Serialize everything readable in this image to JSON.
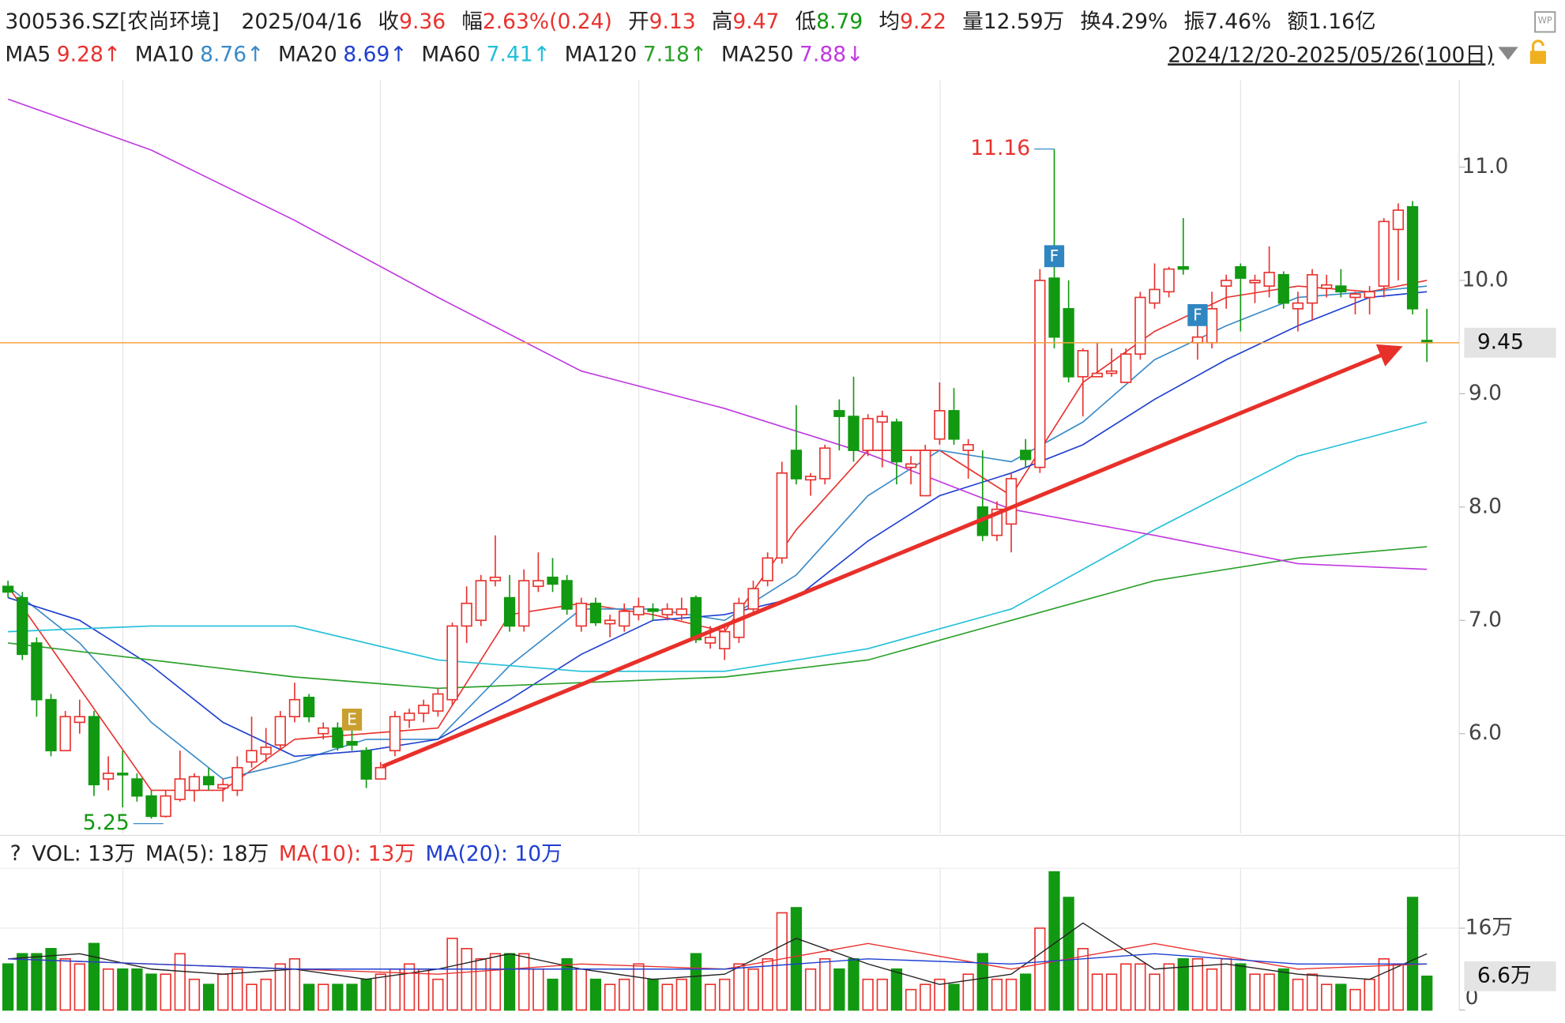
{
  "chart_data": {
    "type": "candlestick",
    "header": {
      "code": "300536.SZ[农尚环境]",
      "date": "2025/04/16",
      "items": [
        {
          "label": "收",
          "value": "9.36",
          "color": "#e8322e"
        },
        {
          "label": "幅",
          "value": "2.63%(0.24)",
          "color": "#e8322e"
        },
        {
          "label": "开",
          "value": "9.13",
          "color": "#e8322e"
        },
        {
          "label": "高",
          "value": "9.47",
          "color": "#e8322e"
        },
        {
          "label": "低",
          "value": "8.79",
          "color": "#119911"
        },
        {
          "label": "均",
          "value": "9.22",
          "color": "#e8322e"
        },
        {
          "label": "量",
          "value": "12.59万",
          "color": "#222222"
        },
        {
          "label": "换",
          "value": "4.29%",
          "color": "#222222"
        },
        {
          "label": "振",
          "value": "7.46%",
          "color": "#222222"
        },
        {
          "label": "额",
          "value": "1.16亿",
          "color": "#222222"
        }
      ]
    },
    "range": "2024/12/20-2025/05/26(100日)",
    "up_color": "#e8322e",
    "down_color": "#119911",
    "ylim": [
      5.12,
      11.77
    ],
    "yticks": [
      {
        "value": 6,
        "label": "6.0"
      },
      {
        "value": 7,
        "label": "7.0"
      },
      {
        "value": 8,
        "label": "8.0"
      },
      {
        "value": 9,
        "label": "9.0"
      },
      {
        "value": 10,
        "label": "10.0"
      },
      {
        "value": 11,
        "label": "11.0"
      }
    ],
    "price_line": 9.45,
    "ohlc": [
      [
        7.3,
        7.35,
        7.2,
        7.25
      ],
      [
        7.2,
        7.25,
        6.65,
        6.7
      ],
      [
        6.8,
        6.85,
        6.15,
        6.3
      ],
      [
        6.3,
        6.35,
        5.8,
        5.85
      ],
      [
        5.85,
        6.2,
        5.85,
        6.15
      ],
      [
        6.1,
        6.3,
        6.0,
        6.15
      ],
      [
        6.15,
        6.2,
        5.45,
        5.55
      ],
      [
        5.6,
        5.8,
        5.5,
        5.65
      ],
      [
        5.65,
        5.85,
        5.35,
        5.64
      ],
      [
        5.6,
        5.65,
        5.4,
        5.45
      ],
      [
        5.45,
        5.5,
        5.25,
        5.27
      ],
      [
        5.27,
        5.5,
        5.26,
        5.45
      ],
      [
        5.42,
        5.85,
        5.4,
        5.6
      ],
      [
        5.5,
        5.65,
        5.4,
        5.62
      ],
      [
        5.62,
        5.7,
        5.5,
        5.55
      ],
      [
        5.52,
        5.6,
        5.4,
        5.55
      ],
      [
        5.5,
        5.8,
        5.45,
        5.7
      ],
      [
        5.75,
        6.15,
        5.7,
        5.85
      ],
      [
        5.82,
        6.05,
        5.75,
        5.88
      ],
      [
        5.9,
        6.2,
        5.85,
        6.15
      ],
      [
        6.15,
        6.45,
        6.1,
        6.3
      ],
      [
        6.32,
        6.35,
        6.1,
        6.15
      ],
      [
        6.0,
        6.1,
        5.95,
        6.05
      ],
      [
        6.05,
        6.1,
        5.85,
        5.88
      ],
      [
        5.93,
        6.1,
        5.85,
        5.9
      ],
      [
        5.85,
        5.88,
        5.52,
        5.6
      ],
      [
        5.6,
        5.75,
        5.6,
        5.7
      ],
      [
        5.85,
        6.2,
        5.8,
        6.15
      ],
      [
        6.12,
        6.22,
        6.05,
        6.18
      ],
      [
        6.18,
        6.3,
        6.1,
        6.25
      ],
      [
        6.2,
        6.4,
        6.15,
        6.35
      ],
      [
        6.3,
        6.98,
        6.25,
        6.95
      ],
      [
        6.95,
        7.3,
        6.8,
        7.15
      ],
      [
        7.0,
        7.4,
        6.95,
        7.35
      ],
      [
        7.35,
        7.75,
        7.3,
        7.38
      ],
      [
        7.2,
        7.4,
        6.9,
        6.95
      ],
      [
        6.95,
        7.45,
        6.9,
        7.35
      ],
      [
        7.3,
        7.6,
        7.25,
        7.35
      ],
      [
        7.38,
        7.55,
        7.25,
        7.32
      ],
      [
        7.35,
        7.4,
        7.05,
        7.1
      ],
      [
        6.95,
        7.2,
        6.9,
        7.15
      ],
      [
        7.15,
        7.2,
        6.95,
        6.98
      ],
      [
        6.97,
        7.05,
        6.85,
        7.0
      ],
      [
        6.95,
        7.15,
        6.9,
        7.08
      ],
      [
        7.05,
        7.2,
        7.0,
        7.12
      ],
      [
        7.1,
        7.15,
        7.0,
        7.08
      ],
      [
        7.05,
        7.15,
        7.0,
        7.1
      ],
      [
        7.05,
        7.2,
        7.0,
        7.1
      ],
      [
        7.2,
        7.22,
        6.8,
        6.83
      ],
      [
        6.8,
        6.95,
        6.75,
        6.85
      ],
      [
        6.75,
        6.95,
        6.65,
        6.9
      ],
      [
        6.85,
        7.2,
        6.8,
        7.15
      ],
      [
        7.1,
        7.35,
        7.05,
        7.28
      ],
      [
        7.35,
        7.6,
        7.3,
        7.55
      ],
      [
        7.55,
        8.4,
        7.5,
        8.3
      ],
      [
        8.5,
        8.9,
        8.2,
        8.25
      ],
      [
        8.24,
        8.3,
        8.1,
        8.27
      ],
      [
        8.25,
        8.55,
        8.2,
        8.52
      ],
      [
        8.85,
        8.95,
        8.5,
        8.8
      ],
      [
        8.8,
        9.15,
        8.4,
        8.5
      ],
      [
        8.5,
        8.82,
        8.45,
        8.78
      ],
      [
        8.75,
        8.85,
        8.35,
        8.8
      ],
      [
        8.75,
        8.78,
        8.2,
        8.4
      ],
      [
        8.35,
        8.45,
        8.2,
        8.38
      ],
      [
        8.1,
        8.55,
        8.1,
        8.5
      ],
      [
        8.6,
        9.1,
        8.55,
        8.85
      ],
      [
        8.85,
        9.05,
        8.55,
        8.6
      ],
      [
        8.5,
        8.6,
        8.25,
        8.55
      ],
      [
        8.0,
        8.5,
        7.7,
        7.75
      ],
      [
        7.75,
        8.05,
        7.7,
        7.98
      ],
      [
        7.85,
        8.3,
        7.6,
        8.25
      ],
      [
        8.5,
        8.6,
        8.35,
        8.42
      ],
      [
        8.35,
        10.1,
        8.3,
        10.0
      ],
      [
        10.02,
        11.16,
        9.4,
        9.5
      ],
      [
        9.75,
        10.0,
        9.1,
        9.15
      ],
      [
        9.15,
        9.4,
        8.8,
        9.38
      ],
      [
        9.15,
        9.45,
        9.15,
        9.18
      ],
      [
        9.18,
        9.4,
        9.15,
        9.2
      ],
      [
        9.1,
        9.4,
        9.1,
        9.35
      ],
      [
        9.35,
        9.9,
        9.3,
        9.85
      ],
      [
        9.8,
        10.15,
        9.75,
        9.92
      ],
      [
        9.9,
        10.12,
        9.85,
        10.1
      ],
      [
        10.12,
        10.55,
        10.05,
        10.1
      ],
      [
        9.45,
        9.75,
        9.3,
        9.5
      ],
      [
        9.45,
        9.9,
        9.4,
        9.75
      ],
      [
        9.95,
        10.05,
        9.75,
        10.0
      ],
      [
        10.12,
        10.15,
        9.55,
        10.02
      ],
      [
        9.98,
        10.05,
        9.8,
        10.0
      ],
      [
        9.95,
        10.3,
        9.85,
        10.07
      ],
      [
        10.05,
        10.08,
        9.75,
        9.8
      ],
      [
        9.75,
        9.9,
        9.55,
        9.8
      ],
      [
        9.8,
        10.1,
        9.65,
        10.05
      ],
      [
        9.93,
        10.05,
        9.85,
        9.96
      ],
      [
        9.95,
        10.1,
        9.85,
        9.9
      ],
      [
        9.85,
        9.9,
        9.7,
        9.88
      ],
      [
        9.85,
        9.95,
        9.7,
        9.9
      ],
      [
        9.95,
        10.55,
        9.85,
        10.52
      ],
      [
        10.45,
        10.68,
        10.0,
        10.62
      ],
      [
        10.65,
        10.7,
        9.7,
        9.75
      ],
      [
        9.47,
        9.75,
        9.28,
        9.45
      ]
    ],
    "ma_lines": [
      {
        "name": "MA5",
        "legend_value": "9.28↑",
        "color": "#e8322e",
        "x": [
          0,
          5,
          10,
          15,
          20,
          25,
          30,
          35,
          40,
          45,
          50,
          55,
          60,
          65,
          70,
          75,
          80,
          85,
          90,
          95,
          99
        ],
        "values": [
          7.3,
          6.4,
          5.5,
          5.5,
          5.95,
          6.0,
          6.05,
          7.05,
          7.15,
          7.05,
          6.9,
          7.8,
          8.5,
          8.5,
          8.1,
          9.1,
          9.55,
          9.85,
          9.95,
          9.9,
          10.0
        ]
      },
      {
        "name": "MA10",
        "legend_value": "8.76↑",
        "color": "#3a8ac8",
        "x": [
          0,
          5,
          10,
          15,
          20,
          25,
          30,
          35,
          40,
          45,
          50,
          55,
          60,
          65,
          70,
          75,
          80,
          85,
          90,
          95,
          99
        ],
        "values": [
          7.3,
          6.8,
          6.1,
          5.6,
          5.75,
          5.95,
          5.95,
          6.6,
          7.1,
          7.1,
          7.0,
          7.4,
          8.1,
          8.5,
          8.4,
          8.75,
          9.3,
          9.6,
          9.85,
          9.9,
          9.95
        ]
      },
      {
        "name": "MA20",
        "legend_value": "8.69↑",
        "color": "#1e3fd0",
        "x": [
          0,
          5,
          10,
          15,
          20,
          25,
          30,
          35,
          40,
          45,
          50,
          55,
          60,
          65,
          70,
          75,
          80,
          85,
          90,
          95,
          99
        ],
        "values": [
          7.2,
          7.0,
          6.6,
          6.1,
          5.8,
          5.85,
          5.95,
          6.3,
          6.7,
          7.0,
          7.05,
          7.2,
          7.7,
          8.1,
          8.3,
          8.55,
          8.95,
          9.3,
          9.6,
          9.85,
          9.9
        ]
      },
      {
        "name": "MA60",
        "legend_value": "7.41↑",
        "color": "#22c0d8",
        "x": [
          0,
          10,
          20,
          30,
          40,
          50,
          60,
          70,
          80,
          90,
          99
        ],
        "values": [
          6.9,
          6.95,
          6.95,
          6.65,
          6.55,
          6.55,
          6.75,
          7.1,
          7.8,
          8.45,
          8.75
        ]
      },
      {
        "name": "MA120",
        "legend_value": "7.18↑",
        "color": "#2aa02a",
        "x": [
          0,
          10,
          20,
          30,
          40,
          50,
          60,
          70,
          80,
          90,
          99
        ],
        "values": [
          6.8,
          6.65,
          6.5,
          6.4,
          6.45,
          6.5,
          6.65,
          7.0,
          7.35,
          7.55,
          7.65
        ]
      },
      {
        "name": "MA250",
        "legend_value": "7.88↓",
        "color": "#c03ae0",
        "x": [
          0,
          10,
          20,
          30,
          40,
          50,
          60,
          70,
          80,
          90,
          99
        ],
        "values": [
          11.6,
          11.15,
          10.53,
          9.85,
          9.2,
          8.87,
          8.47,
          7.98,
          7.75,
          7.5,
          7.45
        ]
      }
    ],
    "events": [
      {
        "index": 24,
        "label": "E",
        "color": "#c9a030"
      },
      {
        "index": 73,
        "label": "F",
        "color": "#2f86c0"
      },
      {
        "index": 83,
        "label": "F",
        "color": "#2f86c0"
      }
    ],
    "volume_legend": [
      "VOL: 13万",
      "MA(5): 18万",
      "MA(10): 13万",
      "MA(20): 10万"
    ],
    "volume_legend_colors": [
      "#222222",
      "#222222",
      "#e8322e",
      "#1e3fd0"
    ],
    "volume_ylim": [
      0,
      27.7
    ],
    "volume_ticks": [
      0,
      {
        "value": 16,
        "label": "16万"
      }
    ],
    "volume": [
      9,
      11,
      11,
      12,
      10,
      9,
      13,
      8,
      8,
      8,
      7,
      7,
      11,
      6,
      5,
      7,
      8,
      5,
      6,
      9,
      10,
      5,
      5,
      5,
      5,
      6,
      7,
      8,
      9,
      8,
      6,
      14,
      12,
      10,
      11,
      11,
      11,
      8,
      6,
      10,
      8,
      6,
      5,
      6,
      9,
      6,
      5,
      6,
      11,
      5,
      6,
      9,
      8,
      10,
      19,
      20,
      8,
      10,
      8,
      10,
      6,
      6,
      8,
      4,
      5,
      6,
      5,
      7,
      11,
      6,
      6,
      7,
      16,
      27,
      22,
      12,
      7,
      7,
      9,
      9,
      7,
      9,
      10,
      10,
      8,
      10,
      9,
      7,
      7,
      8,
      6,
      7,
      5,
      5,
      4,
      6,
      10,
      9,
      22,
      6.6
    ],
    "volume_label": {
      "value": 6.6,
      "label": "6.6万"
    },
    "volume_ma": [
      {
        "color": "#222222",
        "x": [
          0,
          5,
          10,
          15,
          20,
          25,
          30,
          35,
          40,
          45,
          50,
          55,
          60,
          65,
          70,
          75,
          80,
          85,
          90,
          95,
          99
        ],
        "values": [
          10,
          11,
          8,
          7,
          8,
          6,
          8,
          11,
          8,
          6,
          7,
          14,
          9,
          5,
          7,
          17,
          8,
          9,
          7,
          6,
          11
        ]
      },
      {
        "color": "#e8322e",
        "x": [
          0,
          10,
          20,
          30,
          40,
          50,
          60,
          70,
          80,
          90,
          99
        ],
        "values": [
          10,
          9,
          8,
          7,
          9,
          8,
          13,
          8,
          13,
          8,
          9
        ]
      },
      {
        "color": "#1e3fd0",
        "x": [
          0,
          10,
          20,
          30,
          40,
          50,
          60,
          70,
          80,
          90,
          99
        ],
        "values": [
          10,
          9,
          8,
          8,
          8,
          8,
          10,
          9,
          11,
          9,
          9
        ]
      }
    ]
  }
}
